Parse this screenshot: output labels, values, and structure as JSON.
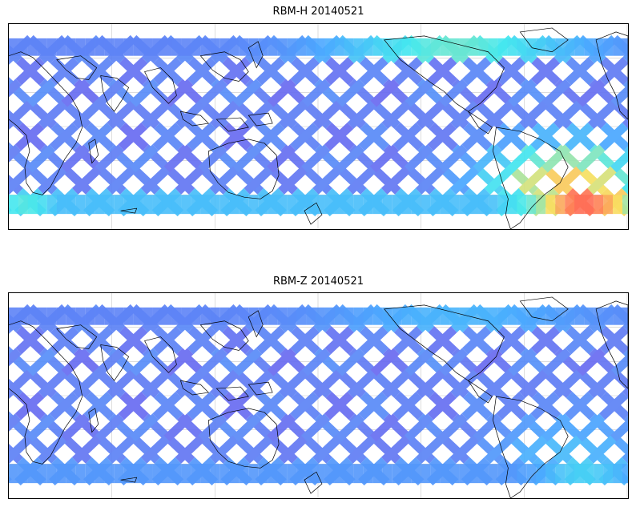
{
  "panels": [
    {
      "title": "RBM-H 20140521",
      "colormap": "jet",
      "hot_regions": [
        {
          "name": "south-atlantic-anomaly",
          "level": 1.0
        },
        {
          "name": "southern-high-latitude-west",
          "level": 0.75
        },
        {
          "name": "northern-high-latitude",
          "level": 0.45
        }
      ]
    },
    {
      "title": "RBM-Z 20140521",
      "colormap": "jet",
      "hot_regions": [
        {
          "name": "south-atlantic-anomaly",
          "level": 0.4
        },
        {
          "name": "southern-high-latitude-west",
          "level": 0.25
        },
        {
          "name": "northern-high-latitude",
          "level": 0.2
        }
      ]
    }
  ],
  "colors": {
    "track_base": "#6a6af0",
    "track_light": "#4aa8ff",
    "cyan": "#44e8ee",
    "yellow": "#f8e060",
    "red": "#ff6a55",
    "coast": "#000000",
    "grid": "#c8c8c8"
  }
}
